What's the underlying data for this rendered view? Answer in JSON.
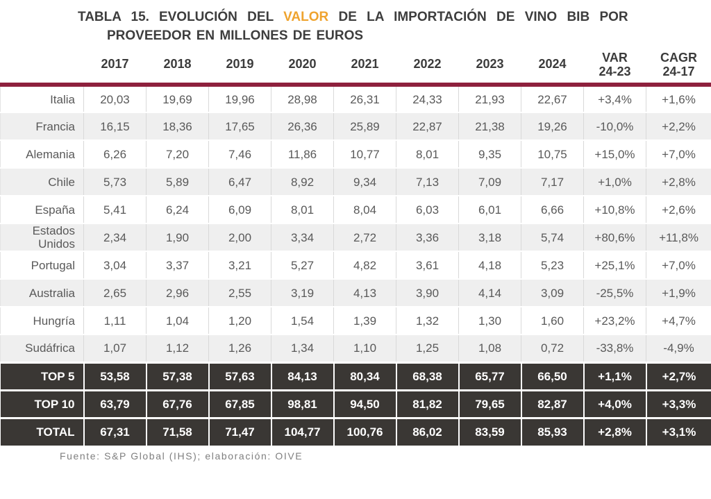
{
  "title": {
    "tag": "TABLA 15.",
    "prefix": "EVOLUCIÓN DEL",
    "highlight": "VALOR",
    "suffix": "DE LA IMPORTACIÓN DE VINO BIB POR",
    "line2": "PROVEEDOR EN MILLONES DE EUROS"
  },
  "colors": {
    "title_text": "#3d3d3d",
    "highlight": "#efa32e",
    "header_rule": "#8e203d",
    "stripe_row_bg": "#efefef",
    "summary_row_bg": "#3a3734",
    "cell_text": "#595959",
    "summary_text": "#ffffff",
    "footer_text": "#7f7f7f"
  },
  "table": {
    "year_headers": [
      "2017",
      "2018",
      "2019",
      "2020",
      "2021",
      "2022",
      "2023",
      "2024"
    ],
    "var_header": [
      "VAR",
      "24-23"
    ],
    "cagr_header": [
      "CAGR",
      "24-17"
    ],
    "rows": [
      {
        "label": "Italia",
        "values": [
          "20,03",
          "19,69",
          "19,96",
          "28,98",
          "26,31",
          "24,33",
          "21,93",
          "22,67"
        ],
        "var": "+3,4%",
        "cagr": "+1,6%"
      },
      {
        "label": "Francia",
        "values": [
          "16,15",
          "18,36",
          "17,65",
          "26,36",
          "25,89",
          "22,87",
          "21,38",
          "19,26"
        ],
        "var": "-10,0%",
        "cagr": "+2,2%"
      },
      {
        "label": "Alemania",
        "values": [
          "6,26",
          "7,20",
          "7,46",
          "11,86",
          "10,77",
          "8,01",
          "9,35",
          "10,75"
        ],
        "var": "+15,0%",
        "cagr": "+7,0%"
      },
      {
        "label": "Chile",
        "values": [
          "5,73",
          "5,89",
          "6,47",
          "8,92",
          "9,34",
          "7,13",
          "7,09",
          "7,17"
        ],
        "var": "+1,0%",
        "cagr": "+2,8%"
      },
      {
        "label": "España",
        "values": [
          "5,41",
          "6,24",
          "6,09",
          "8,01",
          "8,04",
          "6,03",
          "6,01",
          "6,66"
        ],
        "var": "+10,8%",
        "cagr": "+2,6%"
      },
      {
        "label": "Estados Unidos",
        "values": [
          "2,34",
          "1,90",
          "2,00",
          "3,34",
          "2,72",
          "3,36",
          "3,18",
          "5,74"
        ],
        "var": "+80,6%",
        "cagr": "+11,8%"
      },
      {
        "label": "Portugal",
        "values": [
          "3,04",
          "3,37",
          "3,21",
          "5,27",
          "4,82",
          "3,61",
          "4,18",
          "5,23"
        ],
        "var": "+25,1%",
        "cagr": "+7,0%"
      },
      {
        "label": "Australia",
        "values": [
          "2,65",
          "2,96",
          "2,55",
          "3,19",
          "4,13",
          "3,90",
          "4,14",
          "3,09"
        ],
        "var": "-25,5%",
        "cagr": "+1,9%"
      },
      {
        "label": "Hungría",
        "values": [
          "1,11",
          "1,04",
          "1,20",
          "1,54",
          "1,39",
          "1,32",
          "1,30",
          "1,60"
        ],
        "var": "+23,2%",
        "cagr": "+4,7%"
      },
      {
        "label": "Sudáfrica",
        "values": [
          "1,07",
          "1,12",
          "1,26",
          "1,34",
          "1,10",
          "1,25",
          "1,08",
          "0,72"
        ],
        "var": "-33,8%",
        "cagr": "-4,9%"
      }
    ],
    "summary_rows": [
      {
        "label": "TOP 5",
        "values": [
          "53,58",
          "57,38",
          "57,63",
          "84,13",
          "80,34",
          "68,38",
          "65,77",
          "66,50"
        ],
        "var": "+1,1%",
        "cagr": "+2,7%"
      },
      {
        "label": "TOP 10",
        "values": [
          "63,79",
          "67,76",
          "67,85",
          "98,81",
          "94,50",
          "81,82",
          "79,65",
          "82,87"
        ],
        "var": "+4,0%",
        "cagr": "+3,3%"
      },
      {
        "label": "TOTAL",
        "values": [
          "67,31",
          "71,58",
          "71,47",
          "104,77",
          "100,76",
          "86,02",
          "83,59",
          "85,93"
        ],
        "var": "+2,8%",
        "cagr": "+3,1%"
      }
    ]
  },
  "footer": "Fuente: S&P Global (IHS); elaboración: OIVE"
}
